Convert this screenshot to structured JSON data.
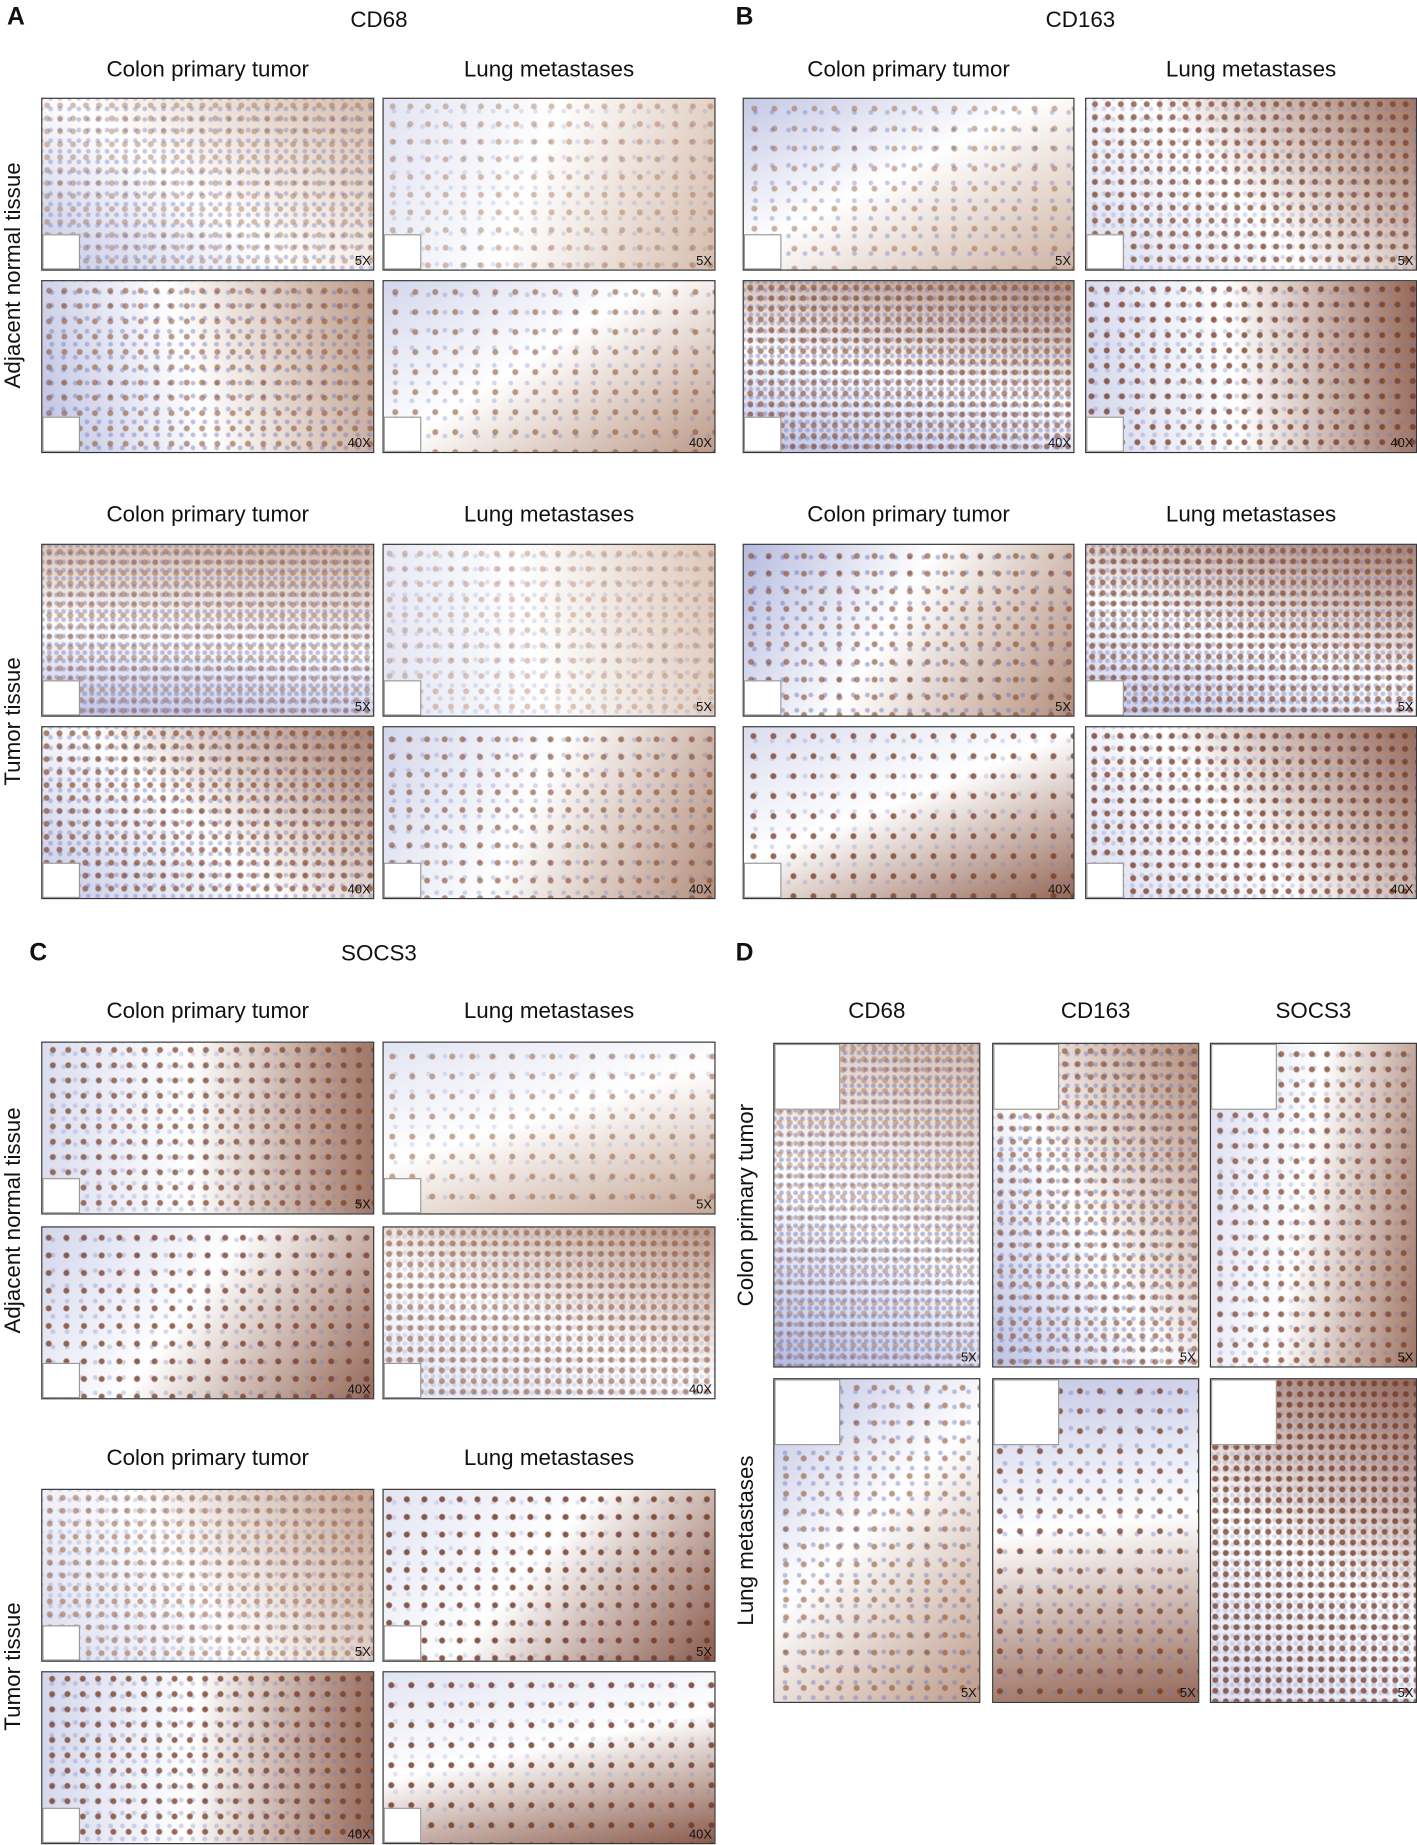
{
  "panels": [
    {
      "letter": "A",
      "title": "CD68",
      "sections": [
        {
          "row_label": "Adjacent normal tissue",
          "columns": [
            "Colon primary tumor",
            "Lung metastases"
          ],
          "magnifications": [
            [
              "5X",
              "5X"
            ],
            [
              "40X",
              "40X"
            ]
          ]
        },
        {
          "row_label": "Tumor tissue",
          "columns": [
            "Colon primary tumor",
            "Lung metastases"
          ],
          "magnifications": [
            [
              "5X",
              "5X"
            ],
            [
              "40X",
              "40X"
            ]
          ]
        }
      ]
    },
    {
      "letter": "B",
      "title": "CD163",
      "sections": [
        {
          "columns": [
            "Colon primary tumor",
            "Lung metastases"
          ],
          "magnifications": [
            [
              "5X",
              "5X"
            ],
            [
              "40X",
              "40X"
            ]
          ]
        },
        {
          "columns": [
            "Colon primary tumor",
            "Lung metastases"
          ],
          "magnifications": [
            [
              "5X",
              "5X"
            ],
            [
              "40X",
              "40X"
            ]
          ]
        }
      ]
    },
    {
      "letter": "C",
      "title": "SOCS3",
      "sections": [
        {
          "row_label": "Adjacent normal tissue",
          "columns": [
            "Colon primary tumor",
            "Lung metastases"
          ],
          "magnifications": [
            [
              "5X",
              "5X"
            ],
            [
              "40X",
              "40X"
            ]
          ]
        },
        {
          "row_label": "Tumor tissue",
          "columns": [
            "Colon primary tumor",
            "Lung metastases"
          ],
          "magnifications": [
            [
              "5X",
              "5X"
            ],
            [
              "40X",
              "40X"
            ]
          ]
        }
      ]
    },
    {
      "letter": "D",
      "columns": [
        "CD68",
        "CD163",
        "SOCS3"
      ],
      "rows": [
        {
          "label": "Colon primary tumor",
          "magnifications": [
            "5X",
            "5X",
            "5X"
          ]
        },
        {
          "label": "Lung metastases",
          "magnifications": [
            "5X",
            "5X",
            "5X"
          ]
        }
      ]
    }
  ]
}
